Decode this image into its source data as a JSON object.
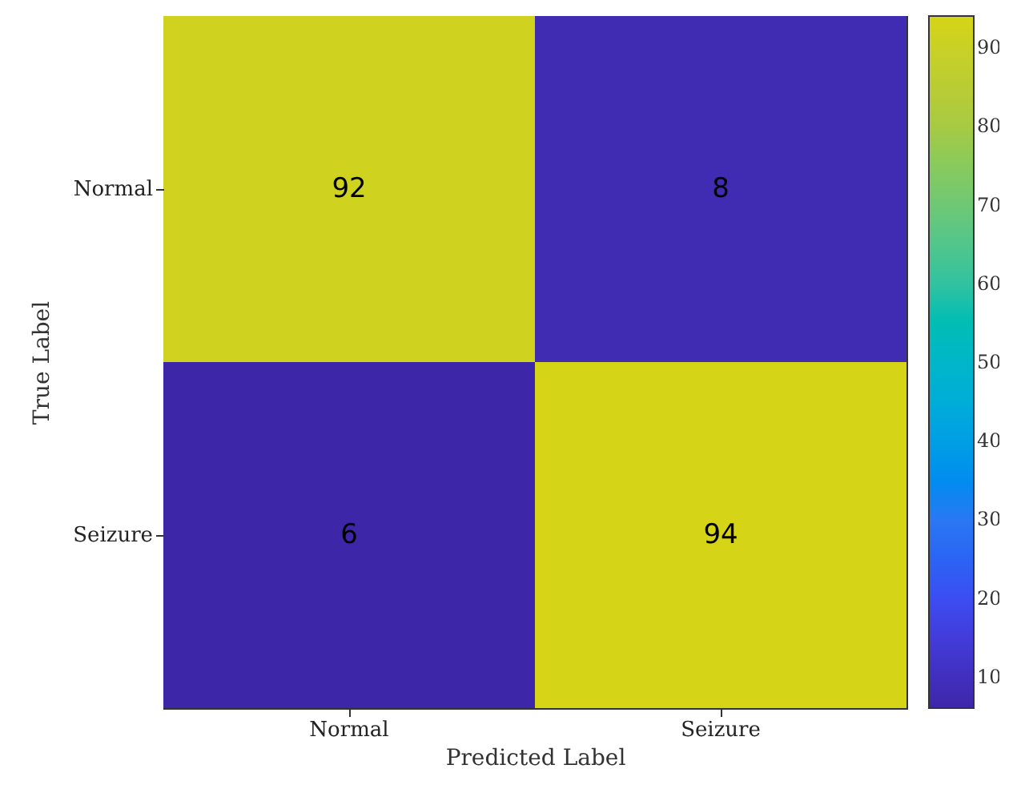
{
  "chart_data": {
    "type": "heatmap",
    "xlabel": "Predicted Label",
    "ylabel": "True Label",
    "categories": [
      "Normal",
      "Seizure"
    ],
    "y_categories": [
      "Normal",
      "Seizure"
    ],
    "cells": [
      [
        92,
        8
      ],
      [
        6,
        94
      ]
    ],
    "clim": [
      6,
      94
    ],
    "cticks": [
      10,
      20,
      30,
      40,
      50,
      60,
      70,
      80,
      90
    ],
    "data_labels": true
  }
}
